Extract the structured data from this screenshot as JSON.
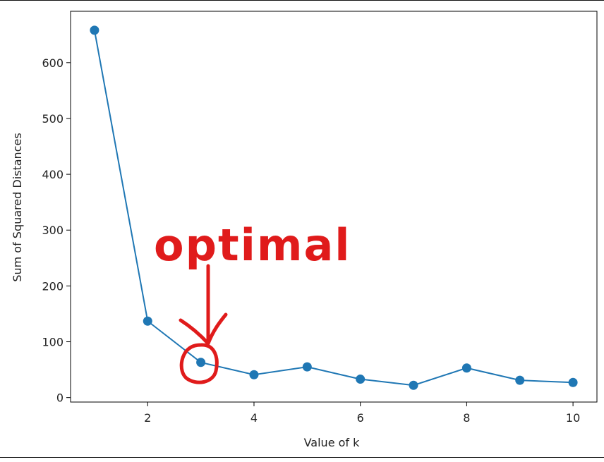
{
  "chart_data": {
    "type": "line",
    "x": [
      1,
      2,
      3,
      4,
      5,
      6,
      7,
      8,
      9,
      10
    ],
    "y": [
      658,
      137,
      63,
      41,
      55,
      33,
      22,
      53,
      31,
      27
    ],
    "xlabel": "Value of k",
    "ylabel": "Sum of Squared Distances",
    "xlim": [
      0.55,
      10.45
    ],
    "ylim": [
      -8,
      692
    ],
    "xticks": [
      2,
      4,
      6,
      8,
      10
    ],
    "yticks": [
      0,
      100,
      200,
      300,
      400,
      500,
      600
    ],
    "marker": "circle",
    "grid": false,
    "colors": {
      "series": "#1f77b4",
      "annotation": "#e01b1b"
    },
    "annotation": {
      "text": "optimal",
      "target_x": 3,
      "target_y": 63
    }
  }
}
